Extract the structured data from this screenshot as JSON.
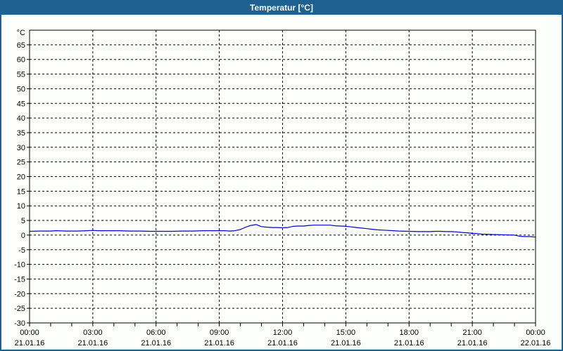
{
  "window": {
    "title": "Temperatur [°C]",
    "titlebar_color": "#1E6190",
    "border_color": "#1E6190",
    "background_color": "#FDFFFD"
  },
  "chart_data": {
    "type": "line",
    "title": "Temperatur [°C]",
    "unit_label": "°C",
    "xlabel": "",
    "ylabel": "°C",
    "ylim": [
      -30,
      70
    ],
    "x_hours_range": [
      0,
      24
    ],
    "grid": true,
    "grid_style": "dashed",
    "axis_color": "#000000",
    "grid_color": "#000000",
    "line_color": "#0000CC",
    "y_tick_values": [
      65,
      60,
      55,
      50,
      45,
      40,
      35,
      30,
      25,
      20,
      15,
      10,
      5,
      0,
      -5,
      -10,
      -15,
      -20,
      -25,
      -30
    ],
    "x_tick_step_hours": 3,
    "x_minor_tick_step_hours": 1,
    "x_ticks": [
      {
        "time": "00:00",
        "date": "21.01.16"
      },
      {
        "time": "03:00",
        "date": "21.01.16"
      },
      {
        "time": "06:00",
        "date": "21.01.16"
      },
      {
        "time": "09:00",
        "date": "21.01.16"
      },
      {
        "time": "12:00",
        "date": "21.01.16"
      },
      {
        "time": "15:00",
        "date": "21.01.16"
      },
      {
        "time": "18:00",
        "date": "21.01.16"
      },
      {
        "time": "21:00",
        "date": "21.01.16"
      },
      {
        "time": "00:00",
        "date": "22.01.16"
      }
    ],
    "series": [
      {
        "name": "Temperatur",
        "color": "#0000CC",
        "points_hour_degc": [
          [
            0.0,
            1.3
          ],
          [
            0.5,
            1.4
          ],
          [
            1.0,
            1.4
          ],
          [
            1.25,
            1.5
          ],
          [
            1.75,
            1.4
          ],
          [
            2.25,
            1.4
          ],
          [
            2.75,
            1.5
          ],
          [
            3.0,
            1.6
          ],
          [
            3.25,
            1.5
          ],
          [
            3.75,
            1.5
          ],
          [
            4.25,
            1.5
          ],
          [
            4.75,
            1.4
          ],
          [
            5.25,
            1.4
          ],
          [
            5.75,
            1.3
          ],
          [
            6.25,
            1.3
          ],
          [
            6.75,
            1.3
          ],
          [
            7.25,
            1.4
          ],
          [
            7.75,
            1.4
          ],
          [
            8.25,
            1.5
          ],
          [
            8.75,
            1.5
          ],
          [
            9.25,
            1.5
          ],
          [
            9.5,
            1.4
          ],
          [
            9.75,
            1.5
          ],
          [
            10.0,
            1.9
          ],
          [
            10.25,
            2.7
          ],
          [
            10.5,
            3.3
          ],
          [
            10.75,
            3.6
          ],
          [
            11.0,
            2.9
          ],
          [
            11.25,
            2.7
          ],
          [
            11.5,
            2.6
          ],
          [
            11.75,
            2.6
          ],
          [
            12.0,
            2.5
          ],
          [
            12.25,
            2.6
          ],
          [
            12.5,
            3.0
          ],
          [
            12.75,
            3.1
          ],
          [
            13.0,
            3.1
          ],
          [
            13.25,
            3.3
          ],
          [
            13.5,
            3.4
          ],
          [
            14.0,
            3.4
          ],
          [
            14.25,
            3.4
          ],
          [
            14.5,
            3.2
          ],
          [
            15.0,
            3.0
          ],
          [
            15.25,
            2.8
          ],
          [
            15.5,
            2.6
          ],
          [
            15.75,
            2.4
          ],
          [
            16.0,
            2.2
          ],
          [
            16.25,
            2.0
          ],
          [
            16.5,
            1.8
          ],
          [
            16.75,
            1.7
          ],
          [
            17.0,
            1.6
          ],
          [
            17.25,
            1.5
          ],
          [
            17.5,
            1.4
          ],
          [
            18.0,
            1.3
          ],
          [
            18.5,
            1.2
          ],
          [
            19.0,
            1.2
          ],
          [
            19.25,
            1.3
          ],
          [
            19.5,
            1.3
          ],
          [
            19.75,
            1.2
          ],
          [
            20.0,
            1.2
          ],
          [
            20.25,
            1.1
          ],
          [
            20.5,
            0.9
          ],
          [
            20.75,
            0.8
          ],
          [
            21.0,
            0.6
          ],
          [
            21.25,
            0.5
          ],
          [
            21.5,
            0.3
          ],
          [
            21.75,
            0.25
          ],
          [
            22.0,
            0.2
          ],
          [
            22.5,
            0.1
          ],
          [
            23.0,
            0.0
          ],
          [
            23.25,
            -0.4
          ],
          [
            23.5,
            -0.5
          ],
          [
            23.75,
            -0.5
          ],
          [
            24.0,
            -0.7
          ]
        ]
      }
    ]
  }
}
